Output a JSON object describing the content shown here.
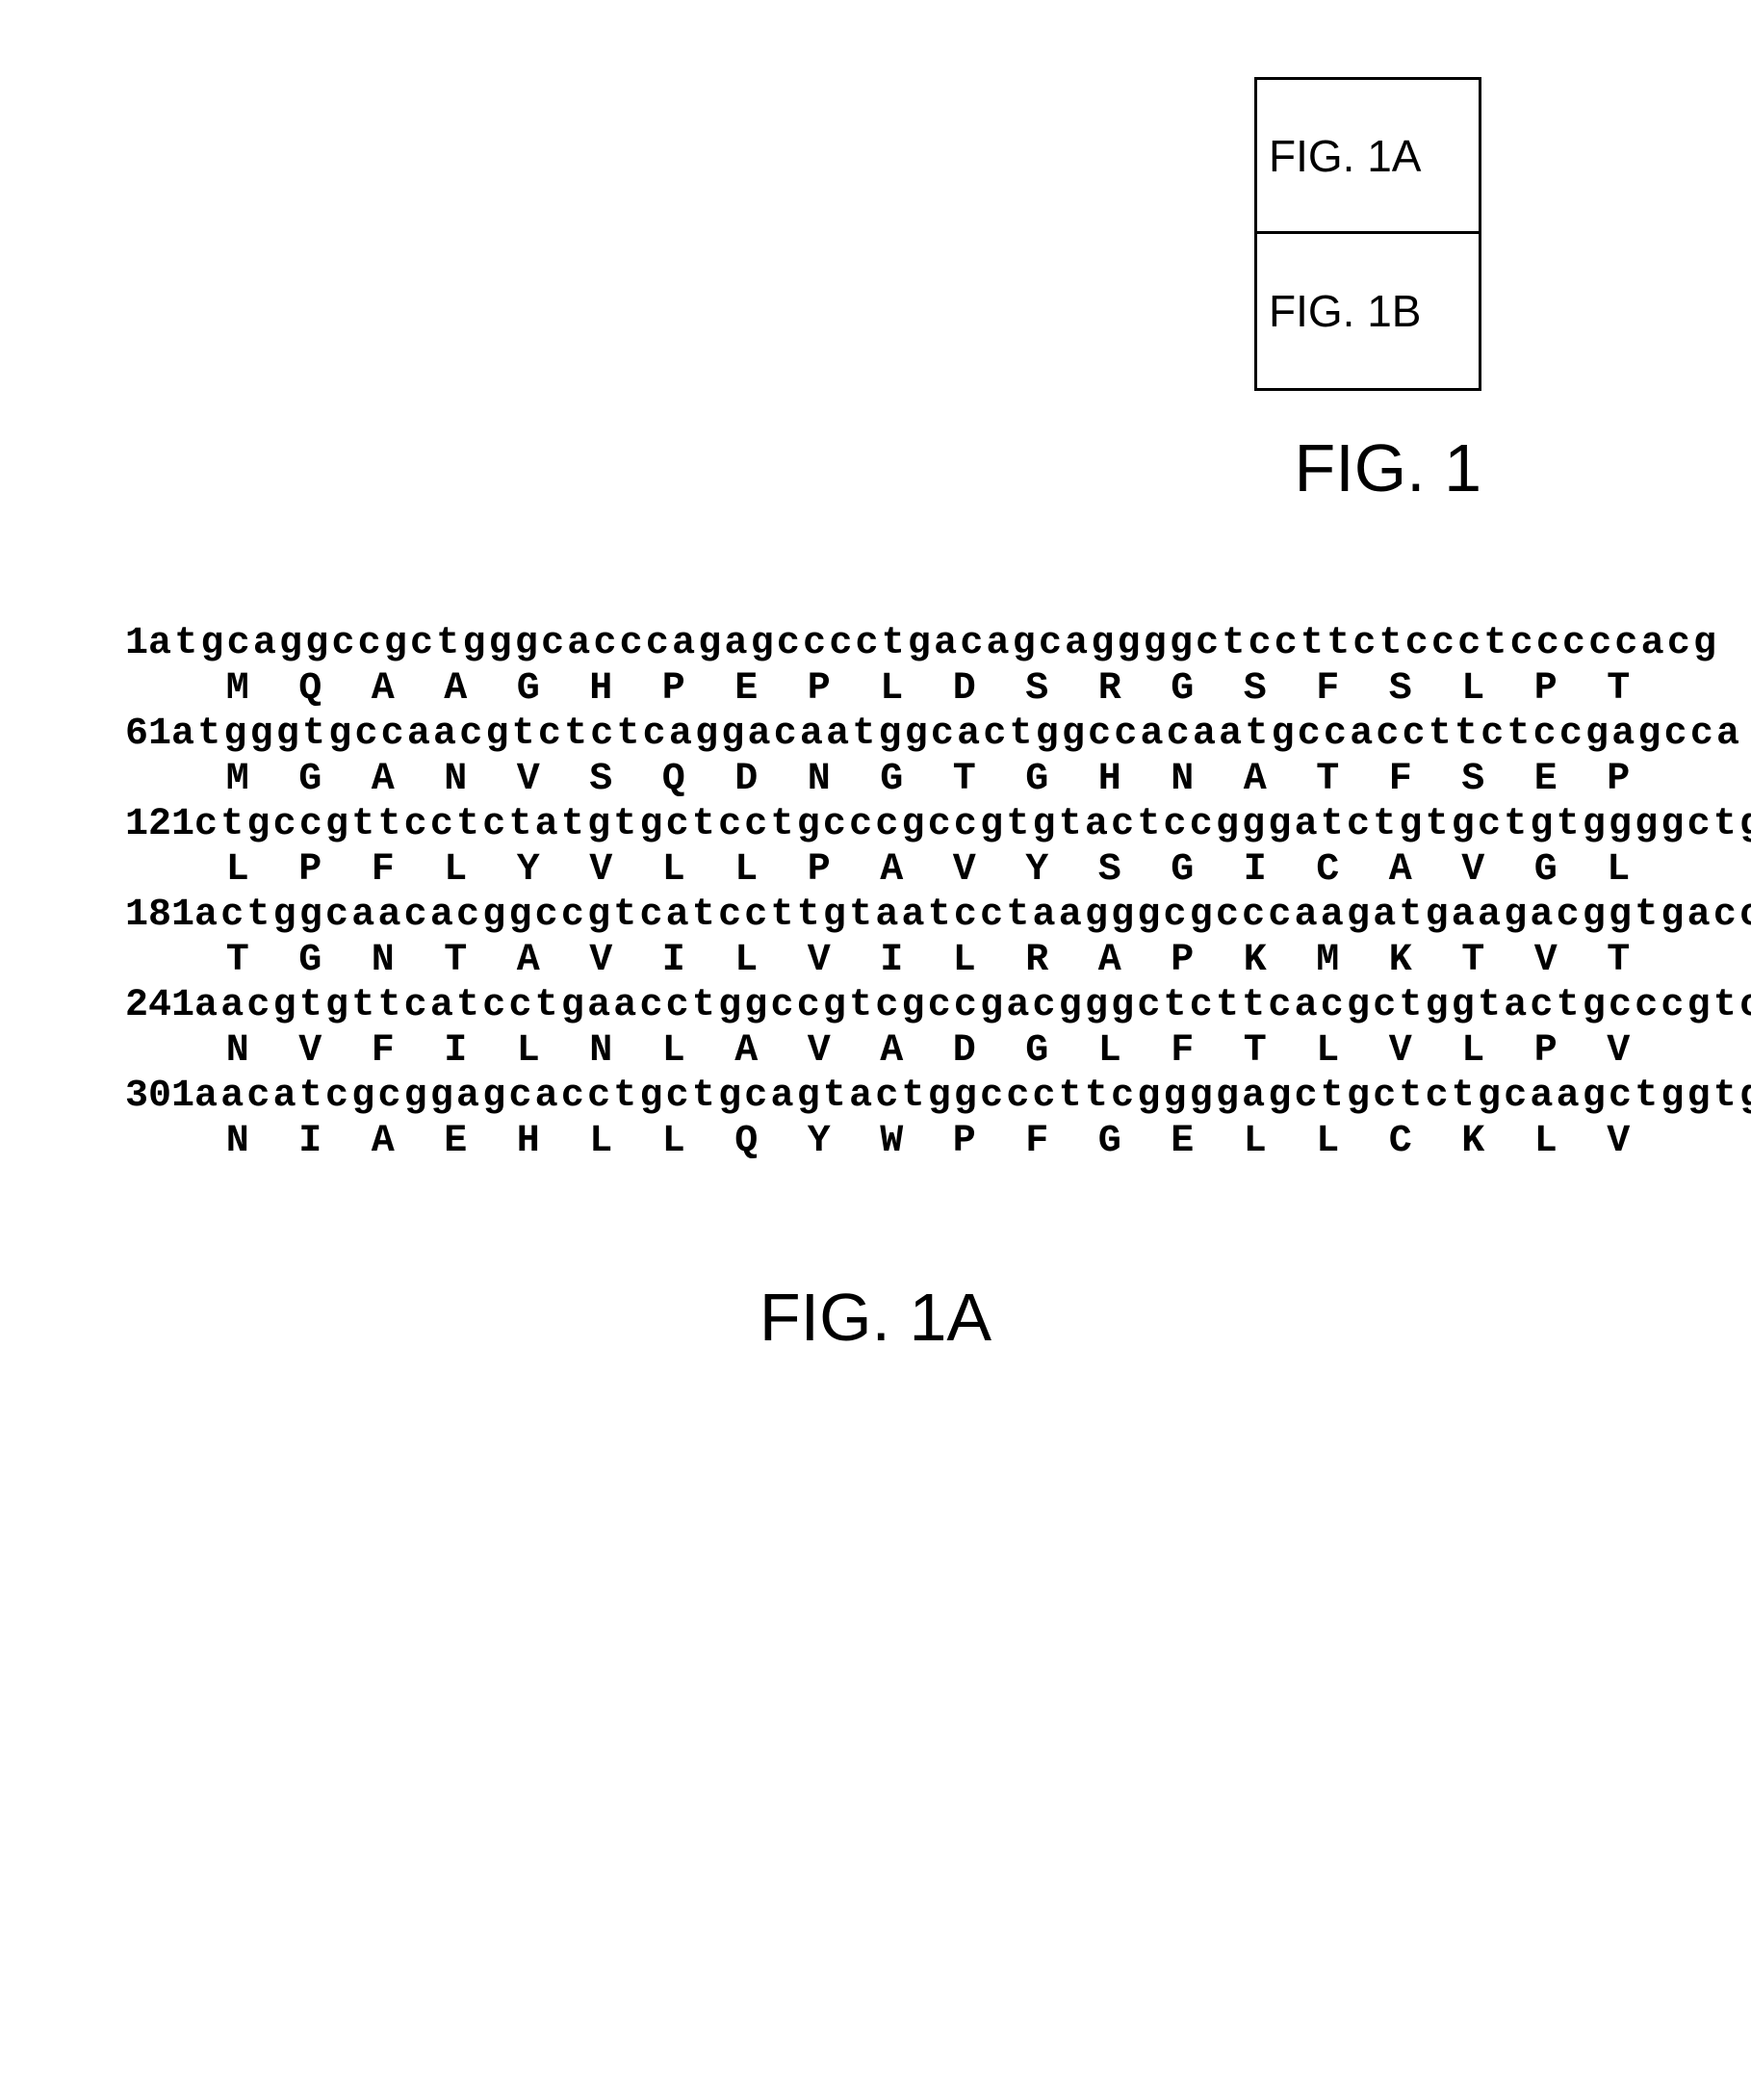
{
  "figure_key": {
    "cells": [
      "FIG. 1A",
      "FIG. 1B"
    ],
    "caption": "FIG. 1"
  },
  "sequence": {
    "rows": [
      {
        "pos": "1",
        "nt": "atgcaggccgctgggcacccagagcccctgacagcaggggctccttctccctcccccacg",
        "aa": [
          "M",
          "Q",
          "A",
          "A",
          "G",
          "H",
          "P",
          "E",
          "P",
          "L",
          "D",
          "S",
          "R",
          "G",
          "S",
          "F",
          "S",
          "L",
          "P",
          "T"
        ]
      },
      {
        "pos": "61",
        "nt": "atgggtgccaacgtctctcaggacaatggcactggccacaatgccaccttctccgagcca",
        "aa": [
          "M",
          "G",
          "A",
          "N",
          "V",
          "S",
          "Q",
          "D",
          "N",
          "G",
          "T",
          "G",
          "H",
          "N",
          "A",
          "T",
          "F",
          "S",
          "E",
          "P"
        ]
      },
      {
        "pos": "121",
        "nt": "ctgccgttcctctatgtgctcctgcccgccgtgtactccgggatctgtgctgtggggctg",
        "aa": [
          "L",
          "P",
          "F",
          "L",
          "Y",
          "V",
          "L",
          "L",
          "P",
          "A",
          "V",
          "Y",
          "S",
          "G",
          "I",
          "C",
          "A",
          "V",
          "G",
          "L"
        ]
      },
      {
        "pos": "181",
        "nt": "actggcaacacggccgtcatccttgtaatcctaagggcgcccaagatgaagacggtgacc",
        "aa": [
          "T",
          "G",
          "N",
          "T",
          "A",
          "V",
          "I",
          "L",
          "V",
          "I",
          "L",
          "R",
          "A",
          "P",
          "K",
          "M",
          "K",
          "T",
          "V",
          "T"
        ]
      },
      {
        "pos": "241",
        "nt": "aacgtgttcatcctgaacctggccgtcgccgacgggctcttcacgctggtactgcccgtc",
        "aa": [
          "N",
          "V",
          "F",
          "I",
          "L",
          "N",
          "L",
          "A",
          "V",
          "A",
          "D",
          "G",
          "L",
          "F",
          "T",
          "L",
          "V",
          "L",
          "P",
          "V"
        ]
      },
      {
        "pos": "301",
        "nt": "aacatcgcggagcacctgctgcagtactggcccttcggggagctgctctgcaagctggtg",
        "aa": [
          "N",
          "I",
          "A",
          "E",
          "H",
          "L",
          "L",
          "Q",
          "Y",
          "W",
          "P",
          "F",
          "G",
          "E",
          "L",
          "L",
          "C",
          "K",
          "L",
          "V"
        ]
      }
    ]
  },
  "bottom_caption": "FIG. 1A",
  "style": {
    "background_color": "#ffffff",
    "text_color": "#000000",
    "border_color": "#000000",
    "key_font": "Arial",
    "seq_font": "Courier",
    "caption_fontsize": 70,
    "key_fontsize": 46,
    "seq_fontsize": 40
  }
}
